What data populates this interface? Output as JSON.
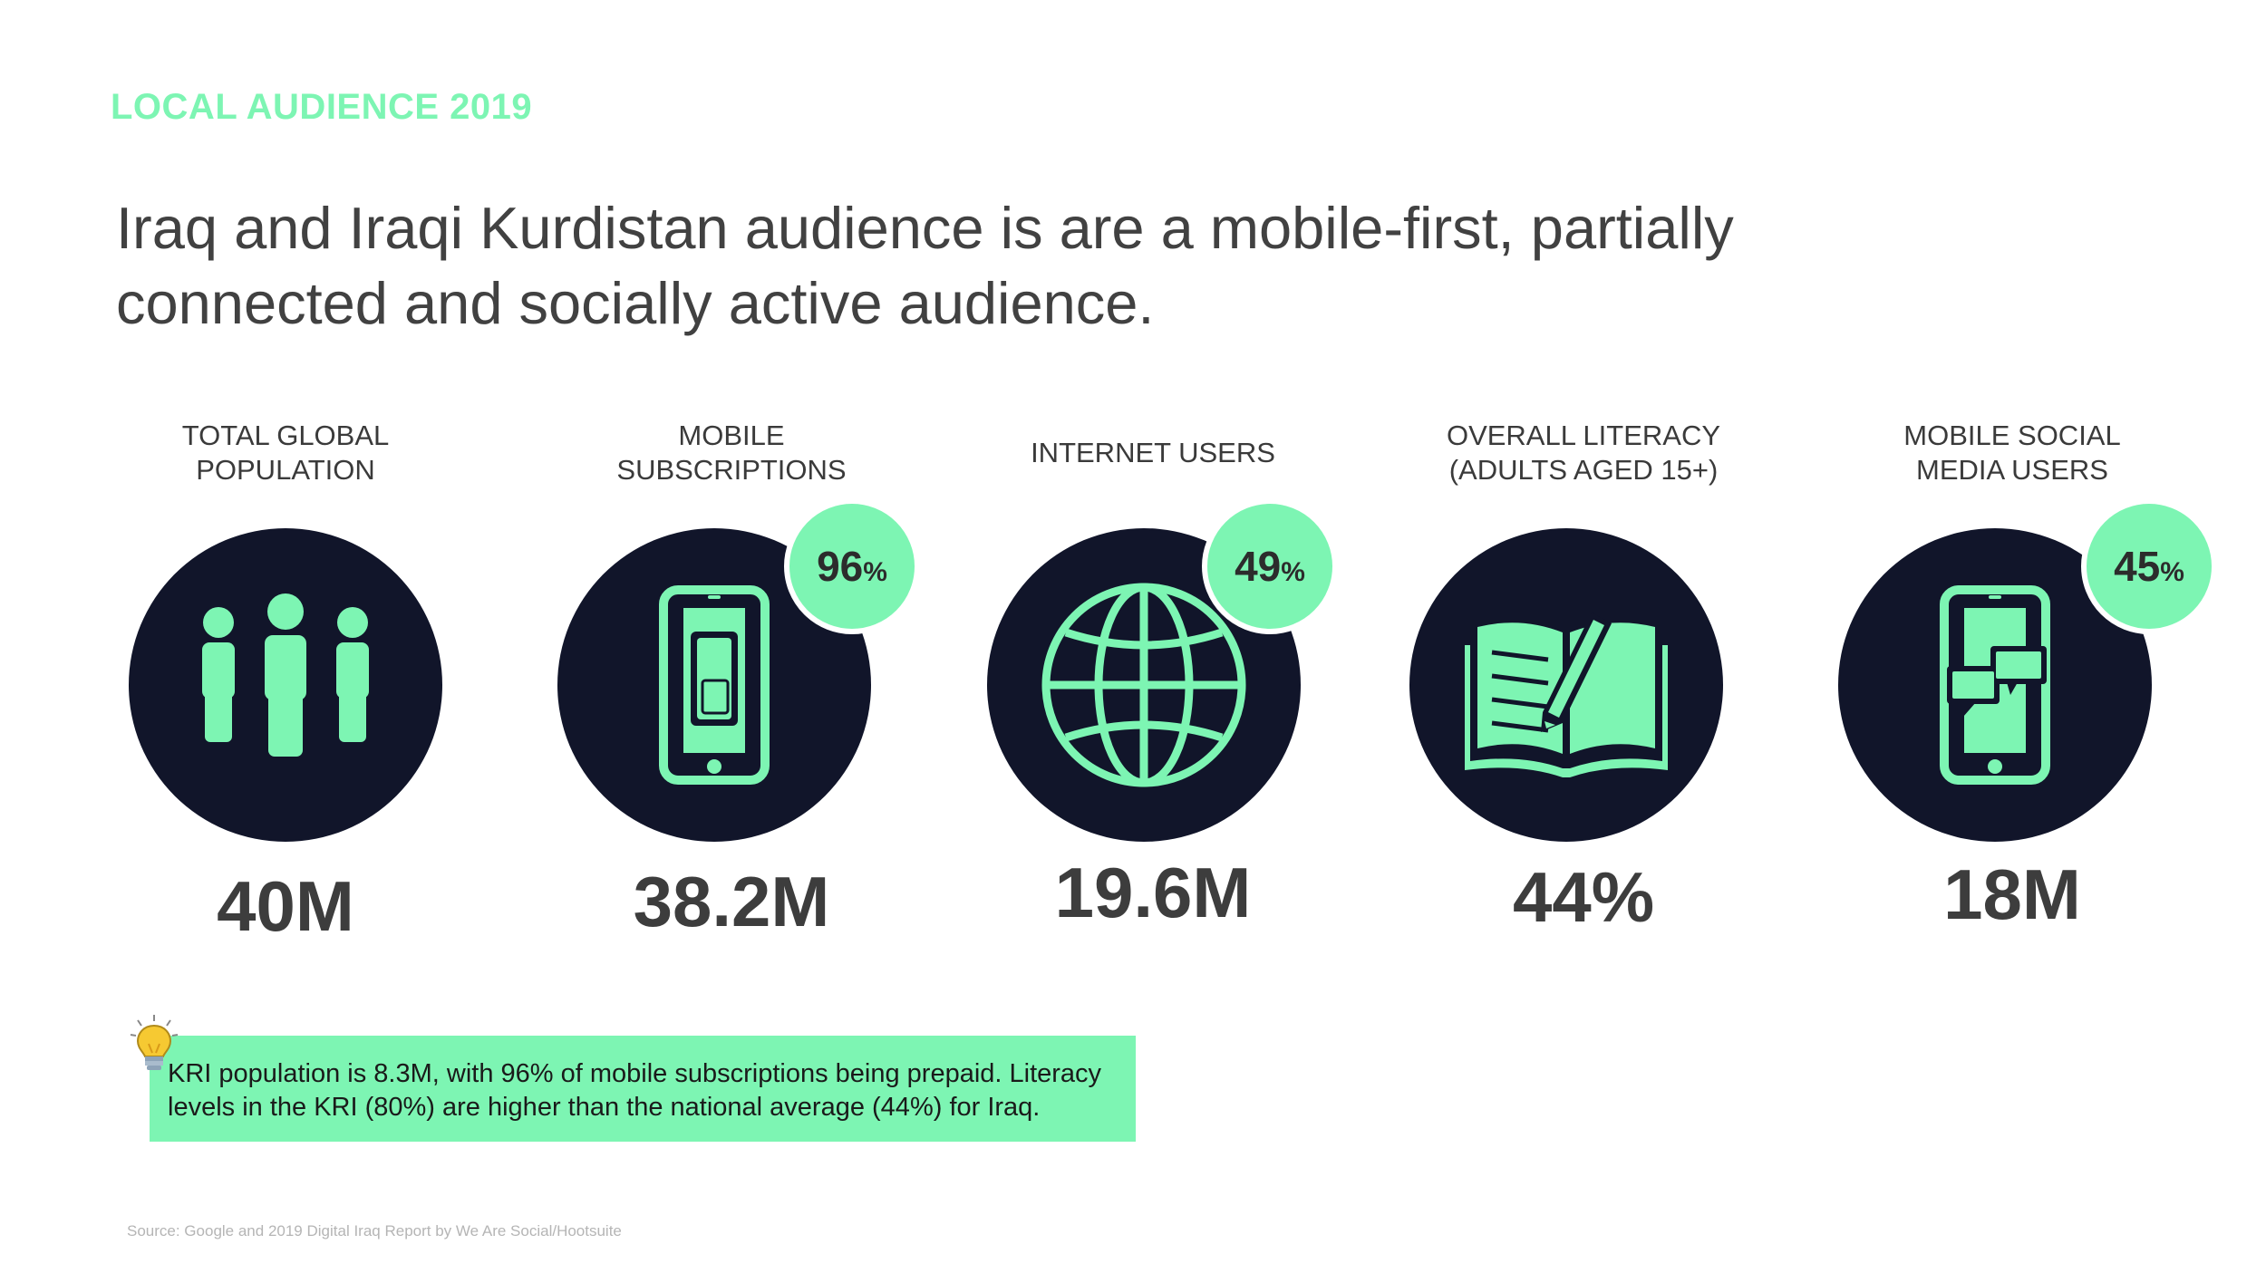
{
  "header": {
    "section_label": "LOCAL AUDIENCE 2019",
    "headline": "Iraq and Iraqi Kurdistan audience is are a mobile-first, partially connected and socially active audience."
  },
  "stats": [
    {
      "label": "TOTAL GLOBAL\nPOPULATION",
      "value": "40M",
      "icon": "people-icon"
    },
    {
      "label": "MOBILE\nSUBSCRIPTIONS",
      "value": "38.2M",
      "icon": "mobile-sim-icon",
      "badge_value": "96",
      "badge_unit": "%"
    },
    {
      "label": "INTERNET USERS",
      "value": "19.6M",
      "icon": "globe-icon",
      "badge_value": "49",
      "badge_unit": "%"
    },
    {
      "label": "OVERALL LITERACY\n(ADULTS AGED 15+)",
      "value": "44%",
      "icon": "book-pencil-icon"
    },
    {
      "label": "MOBILE SOCIAL\nMEDIA USERS",
      "value": "18M",
      "icon": "mobile-chat-icon",
      "badge_value": "45",
      "badge_unit": "%"
    }
  ],
  "note": {
    "icon": "lightbulb-icon",
    "text": "KRI population is 8.3M, with 96% of mobile subscriptions being prepaid. Literacy levels in the KRI (80%) are higher than the national average (44%) for Iraq."
  },
  "footer": {
    "source": "Source: Google and 2019 Digital Iraq Report by We Are Social/Hootsuite"
  },
  "colors": {
    "accent": "#7df5b3",
    "circle": "#11152a",
    "text": "#3d3d3d"
  }
}
